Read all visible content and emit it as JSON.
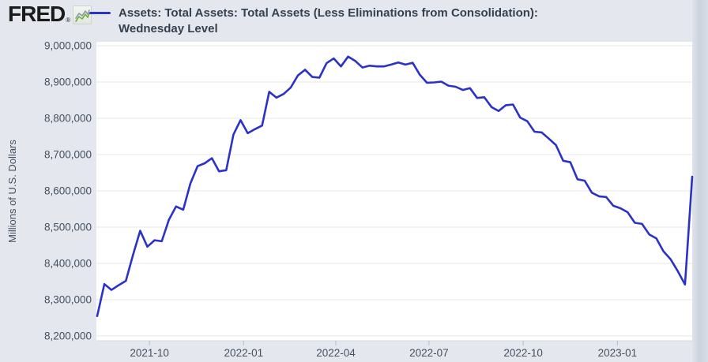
{
  "header": {
    "logo_text": "FRED",
    "registered_mark": "®",
    "title_line1": "Assets: Total Assets: Total Assets (Less Eliminations from Consolidation):",
    "title_line2": "Wednesday Level"
  },
  "colors": {
    "page_background": "#e4e8ee",
    "plot_background": "#ffffff",
    "line": "#2a32c8",
    "gridline": "#e7e7e7",
    "axis_line": "#d3d8e0",
    "tick_mark": "#b6bdc9",
    "tick_text": "#46505f",
    "title_text": "#36404f",
    "logo_green": "#6fae3e",
    "logo_gray": "#8f9aa3"
  },
  "chart_data": {
    "type": "line",
    "title": "Assets: Total Assets: Total Assets (Less Eliminations from Consolidation): Wednesday Level",
    "ylabel": "Millions of U.S. Dollars",
    "xlabel": "",
    "frequency": "weekly (Wednesday level)",
    "grid": "horizontal",
    "legend_position": "top-left",
    "ylim": [
      8200000,
      9000000
    ],
    "y_ticks": [
      8200000,
      8300000,
      8400000,
      8500000,
      8600000,
      8700000,
      8800000,
      8900000,
      9000000
    ],
    "y_tick_labels": [
      "8,200,000",
      "8,300,000",
      "8,400,000",
      "8,500,000",
      "8,600,000",
      "8,700,000",
      "8,800,000",
      "8,900,000",
      "9,000,000"
    ],
    "x_tick_dates": [
      "2021-10-01",
      "2022-01-01",
      "2022-04-01",
      "2022-07-01",
      "2022-10-01",
      "2023-01-01"
    ],
    "x_tick_labels": [
      "2021-10",
      "2022-01",
      "2022-04",
      "2022-07",
      "2022-10",
      "2023-01"
    ],
    "series": [
      {
        "name": "Assets: Total Assets: Total Assets (Less Eliminations from Consolidation): Wednesday Level",
        "color": "#2a32c8",
        "dates": [
          "2021-08-11",
          "2021-08-18",
          "2021-08-25",
          "2021-09-01",
          "2021-09-08",
          "2021-09-15",
          "2021-09-22",
          "2021-09-29",
          "2021-10-06",
          "2021-10-13",
          "2021-10-20",
          "2021-10-27",
          "2021-11-03",
          "2021-11-10",
          "2021-11-17",
          "2021-11-24",
          "2021-12-01",
          "2021-12-08",
          "2021-12-15",
          "2021-12-22",
          "2021-12-29",
          "2022-01-05",
          "2022-01-12",
          "2022-01-19",
          "2022-01-26",
          "2022-02-02",
          "2022-02-09",
          "2022-02-16",
          "2022-02-23",
          "2022-03-02",
          "2022-03-09",
          "2022-03-16",
          "2022-03-23",
          "2022-03-30",
          "2022-04-06",
          "2022-04-13",
          "2022-04-20",
          "2022-04-27",
          "2022-05-04",
          "2022-05-11",
          "2022-05-18",
          "2022-05-25",
          "2022-06-01",
          "2022-06-08",
          "2022-06-15",
          "2022-06-22",
          "2022-06-29",
          "2022-07-06",
          "2022-07-13",
          "2022-07-20",
          "2022-07-27",
          "2022-08-03",
          "2022-08-10",
          "2022-08-17",
          "2022-08-24",
          "2022-08-31",
          "2022-09-07",
          "2022-09-14",
          "2022-09-21",
          "2022-09-28",
          "2022-10-05",
          "2022-10-12",
          "2022-10-19",
          "2022-10-26",
          "2022-11-02",
          "2022-11-09",
          "2022-11-16",
          "2022-11-23",
          "2022-11-30",
          "2022-12-07",
          "2022-12-14",
          "2022-12-21",
          "2022-12-28",
          "2023-01-04",
          "2023-01-11",
          "2023-01-18",
          "2023-01-25",
          "2023-02-01",
          "2023-02-08",
          "2023-02-15",
          "2023-02-22",
          "2023-03-01",
          "2023-03-08",
          "2023-03-15"
        ],
        "values": [
          8255000,
          8343000,
          8327000,
          8340000,
          8352000,
          8424000,
          8490000,
          8446000,
          8464000,
          8461000,
          8520000,
          8557000,
          8548000,
          8620000,
          8668000,
          8676000,
          8690000,
          8654000,
          8657000,
          8755000,
          8795000,
          8759000,
          8770000,
          8780000,
          8873000,
          8857000,
          8867000,
          8885000,
          8918000,
          8934000,
          8914000,
          8912000,
          8952000,
          8965000,
          8943000,
          8970000,
          8958000,
          8940000,
          8945000,
          8943000,
          8943000,
          8948000,
          8954000,
          8948000,
          8953000,
          8920000,
          8898000,
          8899000,
          8901000,
          8890000,
          8887000,
          8878000,
          8883000,
          8856000,
          8858000,
          8831000,
          8820000,
          8836000,
          8838000,
          8802000,
          8792000,
          8763000,
          8761000,
          8744000,
          8726000,
          8683000,
          8679000,
          8632000,
          8628000,
          8595000,
          8585000,
          8583000,
          8559000,
          8552000,
          8541000,
          8512000,
          8509000,
          8480000,
          8469000,
          8433000,
          8411000,
          8378000,
          8342000,
          8639000
        ]
      }
    ]
  }
}
